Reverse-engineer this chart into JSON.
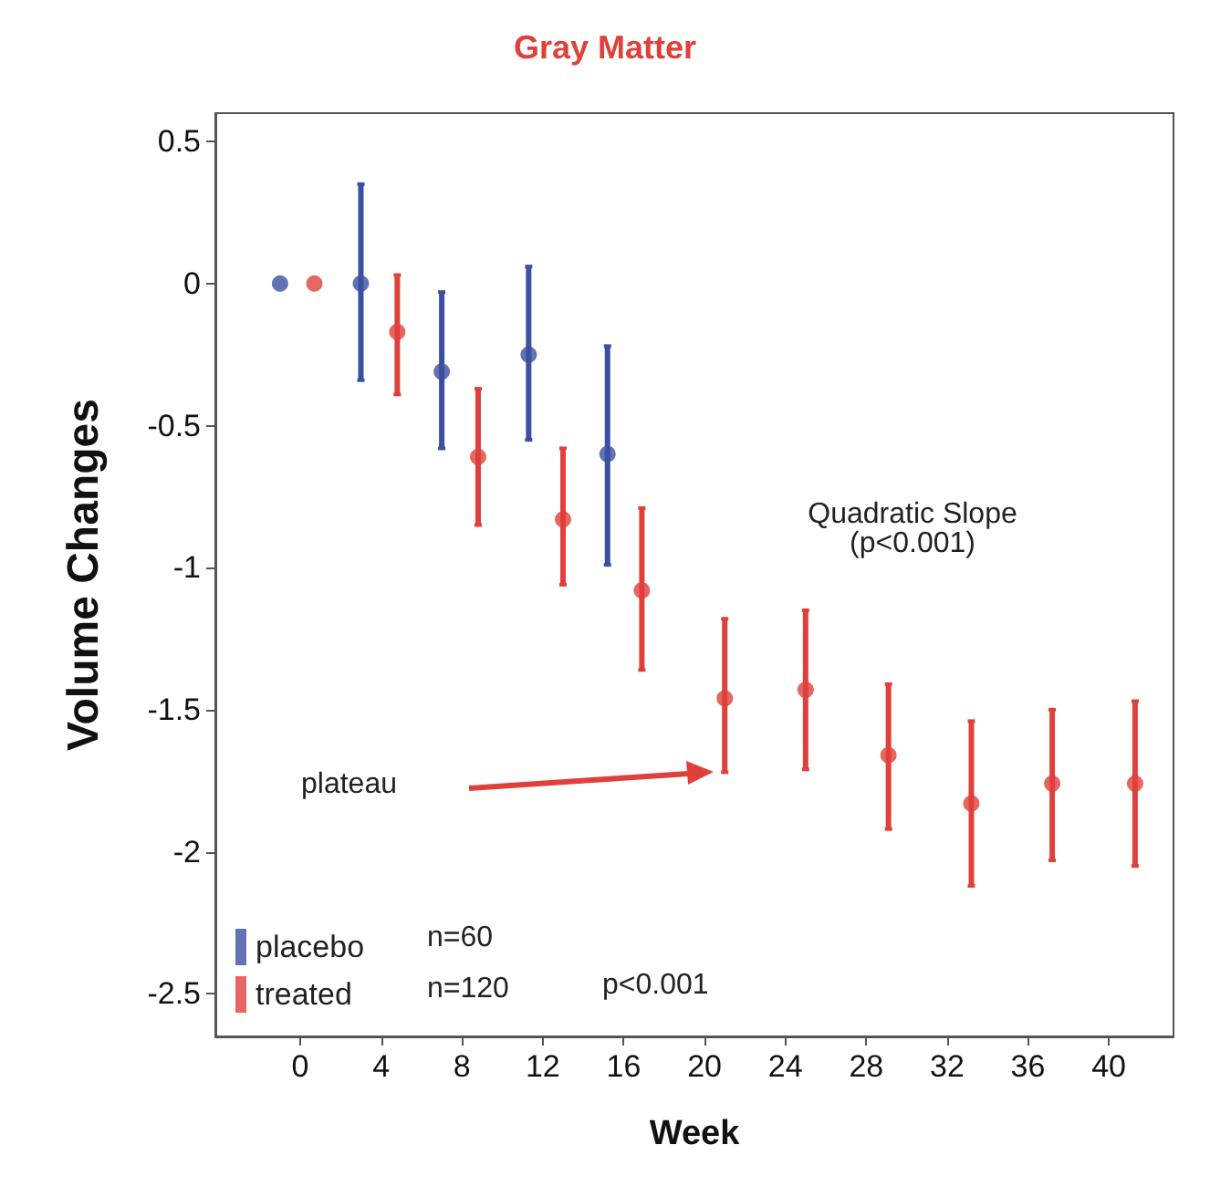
{
  "chart_data": {
    "type": "scatter",
    "title": "Gray Matter",
    "xlabel": "Week",
    "ylabel": "Volume Changes",
    "xlim": [
      -4.2,
      43.2
    ],
    "xticks": [
      0,
      4,
      8,
      12,
      16,
      20,
      24,
      28,
      32,
      36,
      40
    ],
    "ylim": [
      -2.65,
      0.6
    ],
    "yticks": [
      0.5,
      0,
      -0.5,
      -1,
      -1.5,
      -2,
      -2.5
    ],
    "series": [
      {
        "name": "placebo",
        "color": "#3b4fa0",
        "x": [
          -1,
          3,
          7,
          11.3,
          15.2
        ],
        "values": [
          0,
          0,
          -0.31,
          -0.25,
          -0.6
        ],
        "errors": [
          null,
          [
            -0.34,
            0.35
          ],
          [
            -0.58,
            -0.03
          ],
          [
            -0.55,
            0.06
          ],
          [
            -0.99,
            -0.22
          ]
        ]
      },
      {
        "name": "treated",
        "color": "#e0403a",
        "x": [
          0.7,
          4.8,
          8.8,
          13,
          16.9,
          21,
          25,
          29.1,
          33.2,
          37.2,
          41.3
        ],
        "values": [
          0,
          -0.17,
          -0.61,
          -0.83,
          -1.08,
          -1.46,
          -1.43,
          -1.66,
          -1.83,
          -1.76,
          -1.76
        ],
        "errors": [
          null,
          [
            -0.39,
            0.03
          ],
          [
            -0.85,
            -0.37
          ],
          [
            -1.06,
            -0.58
          ],
          [
            -1.36,
            -0.79
          ],
          [
            -1.72,
            -1.18
          ],
          [
            -1.71,
            -1.15
          ],
          [
            -1.92,
            -1.41
          ],
          [
            -2.12,
            -1.54
          ],
          [
            -2.03,
            -1.5
          ],
          [
            -2.05,
            -1.47
          ]
        ]
      }
    ],
    "annotations": [
      "Quadratic Slope\n(p<0.001)",
      "plateau",
      "n=60",
      "n=120",
      "p<0.001"
    ],
    "legend": "bottom left",
    "marker": "circle",
    "grid": false
  }
}
